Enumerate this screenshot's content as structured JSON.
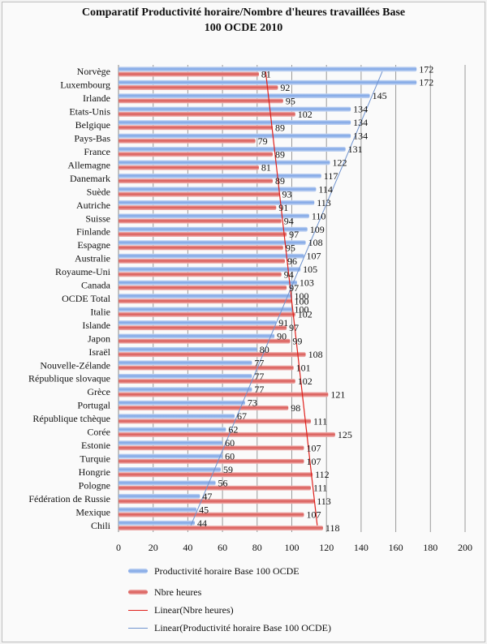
{
  "chart_data": {
    "type": "bar",
    "orientation": "horizontal",
    "title_line1": "Comparatif Productivité horaire/Nombre d'heures travaillées Base",
    "title_line2": "100 OCDE 2010",
    "categories": [
      "Norvège",
      "Luxembourg",
      "Irlande",
      "Etats-Unis",
      "Belgique",
      "Pays-Bas",
      "France",
      "Allemagne",
      "Danemark",
      "Suède",
      "Autriche",
      "Suisse",
      "Finlande",
      "Espagne",
      "Australie",
      "Royaume-Uni",
      "Canada",
      "OCDE Total",
      "Italie",
      "Islande",
      "Japon",
      "Israël",
      "Nouvelle-Zélande",
      "République slovaque",
      "Grèce",
      "Portugal",
      "République tchèque",
      "Corée",
      "Estonie",
      "Turquie",
      "Hongrie",
      "Pologne",
      "Fédération de Russie",
      "Mexique",
      "Chili"
    ],
    "series": [
      {
        "name": "Productivité horaire Base 100 OCDE",
        "color": "#7fa6e6",
        "values": [
          172,
          172,
          145,
          134,
          134,
          134,
          131,
          122,
          117,
          114,
          113,
          110,
          109,
          108,
          107,
          105,
          103,
          100,
          100,
          91,
          90,
          80,
          77,
          77,
          77,
          73,
          67,
          62,
          60,
          60,
          59,
          56,
          47,
          45,
          44
        ]
      },
      {
        "name": "Nbre heures",
        "color": "#d95a57",
        "values": [
          81,
          92,
          95,
          102,
          89,
          79,
          89,
          81,
          89,
          93,
          91,
          94,
          97,
          95,
          96,
          94,
          97,
          100,
          102,
          97,
          99,
          108,
          101,
          102,
          121,
          98,
          111,
          125,
          107,
          107,
          112,
          111,
          113,
          107,
          118
        ]
      }
    ],
    "trendlines": [
      {
        "name": "Linear(Nbre heures)",
        "color": "#e0201c"
      },
      {
        "name": "Linear(Productivité horaire Base 100 OCDE)",
        "color": "#6f93cf"
      }
    ],
    "xlim": [
      0,
      200
    ],
    "xticks": [
      "0",
      "20",
      "40",
      "60",
      "80",
      "100",
      "120",
      "140",
      "160",
      "180",
      "200"
    ],
    "grid": true,
    "legend_position": "bottom"
  }
}
